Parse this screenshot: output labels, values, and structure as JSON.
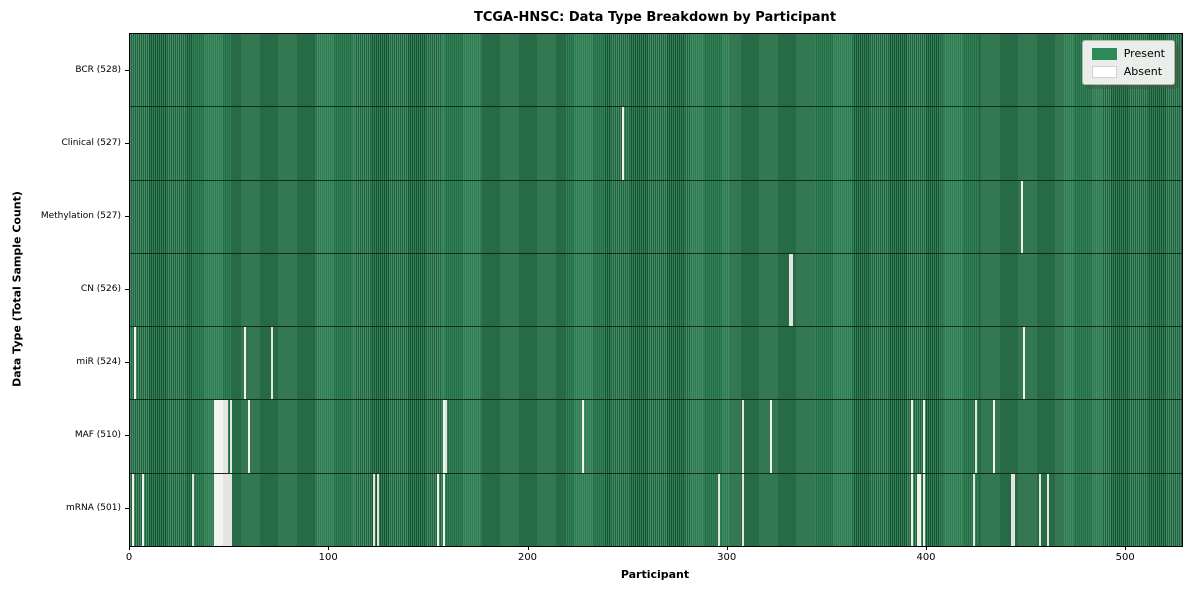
{
  "title": "TCGA-HNSC: Data Type Breakdown by Participant",
  "chart_data": {
    "type": "heatmap",
    "title": "TCGA-HNSC: Data Type Breakdown by Participant",
    "xlabel": "Participant",
    "ylabel": "Data Type (Total Sample Count)",
    "n_participants": 528,
    "x_ticks": [
      0,
      100,
      200,
      300,
      400,
      500
    ],
    "x_range": [
      0,
      528
    ],
    "grid": false,
    "legend_position": "upper right",
    "legend": [
      {
        "label": "Present",
        "color": "#2e8b57"
      },
      {
        "label": "Absent",
        "color": "#ffffff"
      }
    ],
    "colors": {
      "present": "#2e8b57",
      "present_stripe_dark": "#1d5737",
      "absent": "#f2f2ee",
      "row_separator": "#062213",
      "plot_border": "#000000"
    },
    "rows": [
      {
        "label": "BCR (528)",
        "data_type": "BCR",
        "count": 528,
        "absent_participants": []
      },
      {
        "label": "Clinical (527)",
        "data_type": "Clinical",
        "count": 527,
        "absent_participants": [
          247
        ]
      },
      {
        "label": "Methylation (527)",
        "data_type": "Methylation",
        "count": 527,
        "absent_participants": [
          447
        ]
      },
      {
        "label": "CN (526)",
        "data_type": "CN",
        "count": 526,
        "absent_participants": [
          331,
          332
        ]
      },
      {
        "label": "miR (524)",
        "data_type": "miR",
        "count": 524,
        "absent_participants": [
          2,
          57,
          71,
          448
        ]
      },
      {
        "label": "MAF (510)",
        "data_type": "MAF",
        "count": 510,
        "absent_participants": [
          42,
          43,
          44,
          45,
          46,
          47,
          48,
          50,
          59,
          157,
          158,
          227,
          307,
          321,
          392,
          398,
          424,
          433
        ]
      },
      {
        "label": "mRNA (501)",
        "data_type": "mRNA",
        "count": 501,
        "absent_participants": [
          1,
          6,
          31,
          42,
          43,
          44,
          45,
          46,
          47,
          48,
          49,
          50,
          122,
          124,
          154,
          157,
          295,
          307,
          392,
          395,
          396,
          398,
          423,
          442,
          443,
          456,
          460
        ]
      }
    ]
  }
}
